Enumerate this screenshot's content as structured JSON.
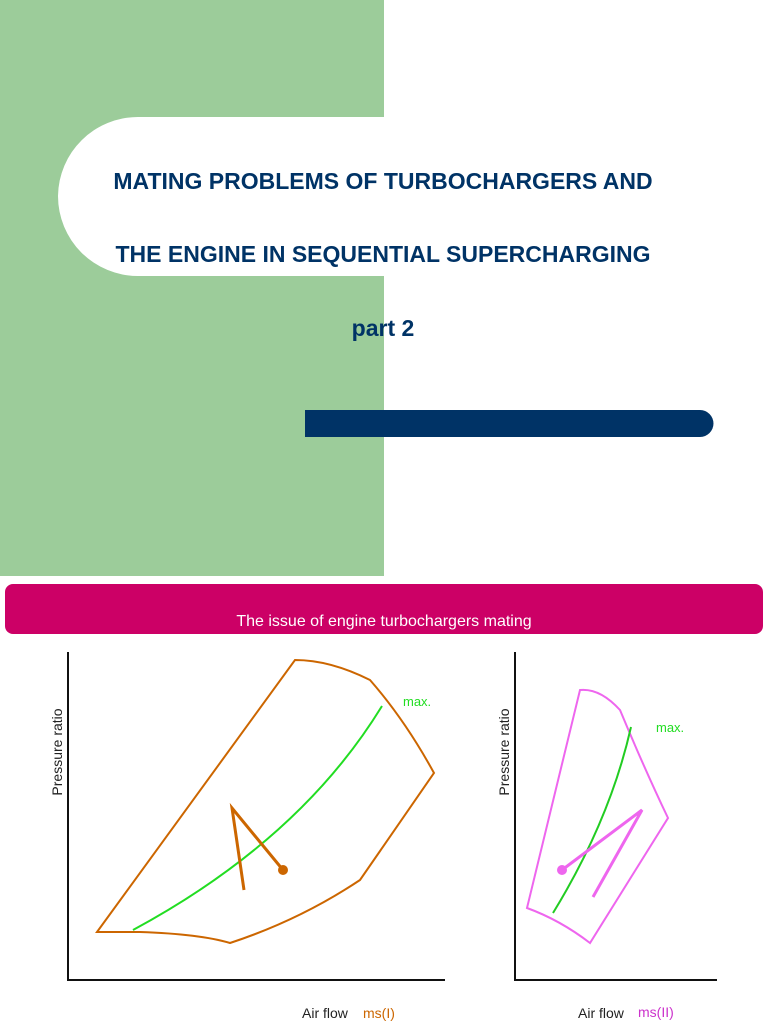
{
  "title": {
    "line1": "MATING PROBLEMS OF TURBOCHARGERS AND",
    "line2": "THE ENGINE IN SEQUENTIAL SUPERCHARGING",
    "subtitle": "part 2"
  },
  "banner": "The issue of engine turbochargers mating",
  "diagrams": [
    {
      "y_label": "Pressure ratio",
      "curve_label": "max.",
      "x_label": "Air flow",
      "x_symbol": "ms(I)"
    },
    {
      "y_label": "Pressure ratio",
      "curve_label": "max.",
      "x_label": "Air flow",
      "x_symbol": "ms(II)"
    }
  ]
}
